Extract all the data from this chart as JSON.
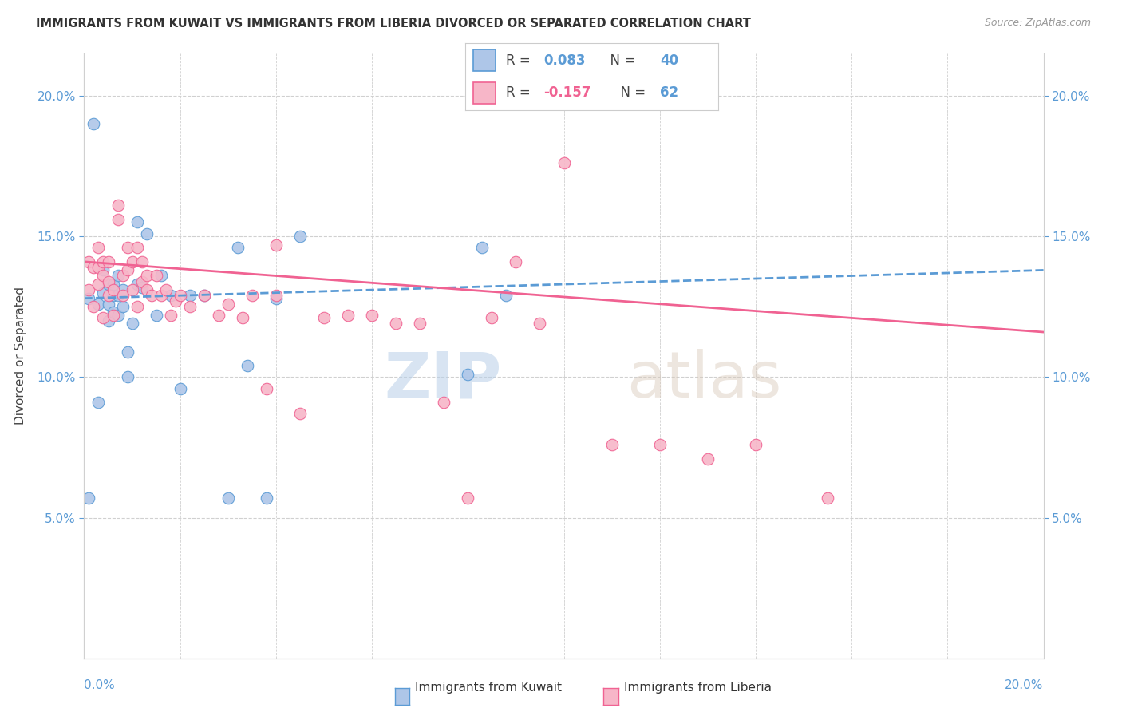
{
  "title": "IMMIGRANTS FROM KUWAIT VS IMMIGRANTS FROM LIBERIA DIVORCED OR SEPARATED CORRELATION CHART",
  "source": "Source: ZipAtlas.com",
  "ylabel": "Divorced or Separated",
  "xlim": [
    0.0,
    0.2
  ],
  "ylim": [
    0.0,
    0.215
  ],
  "yticks": [
    0.05,
    0.1,
    0.15,
    0.2
  ],
  "ytick_labels": [
    "5.0%",
    "10.0%",
    "15.0%",
    "20.0%"
  ],
  "kuwait_color": "#aec6e8",
  "liberia_color": "#f7b6c8",
  "kuwait_edge_color": "#5b9bd5",
  "liberia_edge_color": "#f06292",
  "kuwait_line_color": "#5b9bd5",
  "liberia_line_color": "#f06292",
  "kuwait_R": 0.083,
  "kuwait_N": 40,
  "liberia_R": -0.157,
  "liberia_N": 62,
  "watermark_zip": "ZIP",
  "watermark_atlas": "atlas",
  "background_color": "#ffffff",
  "grid_color": "#d0d0d0",
  "tick_label_color": "#5b9bd5",
  "title_color": "#333333",
  "source_color": "#999999",
  "ylabel_color": "#444444",
  "kuwait_line_start_y": 0.128,
  "kuwait_line_end_y": 0.138,
  "liberia_line_start_y": 0.141,
  "liberia_line_end_y": 0.116,
  "kw_x": [
    0.001,
    0.002,
    0.003,
    0.003,
    0.004,
    0.004,
    0.005,
    0.005,
    0.005,
    0.006,
    0.006,
    0.006,
    0.007,
    0.007,
    0.007,
    0.008,
    0.008,
    0.009,
    0.009,
    0.01,
    0.011,
    0.011,
    0.012,
    0.013,
    0.015,
    0.016,
    0.018,
    0.02,
    0.022,
    0.025,
    0.03,
    0.032,
    0.034,
    0.038,
    0.04,
    0.045,
    0.08,
    0.083,
    0.088,
    0.001
  ],
  "kw_y": [
    0.128,
    0.19,
    0.091,
    0.126,
    0.13,
    0.138,
    0.12,
    0.126,
    0.133,
    0.123,
    0.129,
    0.133,
    0.122,
    0.129,
    0.136,
    0.125,
    0.131,
    0.1,
    0.109,
    0.119,
    0.155,
    0.133,
    0.132,
    0.151,
    0.122,
    0.136,
    0.129,
    0.096,
    0.129,
    0.129,
    0.057,
    0.146,
    0.104,
    0.057,
    0.128,
    0.15,
    0.101,
    0.146,
    0.129,
    0.057
  ],
  "lb_x": [
    0.001,
    0.001,
    0.002,
    0.002,
    0.003,
    0.003,
    0.003,
    0.004,
    0.004,
    0.004,
    0.005,
    0.005,
    0.005,
    0.006,
    0.006,
    0.007,
    0.007,
    0.008,
    0.008,
    0.009,
    0.009,
    0.01,
    0.01,
    0.011,
    0.011,
    0.012,
    0.012,
    0.013,
    0.013,
    0.014,
    0.015,
    0.016,
    0.017,
    0.018,
    0.019,
    0.02,
    0.022,
    0.025,
    0.028,
    0.03,
    0.033,
    0.035,
    0.038,
    0.04,
    0.045,
    0.05,
    0.055,
    0.06,
    0.065,
    0.07,
    0.075,
    0.08,
    0.085,
    0.09,
    0.095,
    0.1,
    0.11,
    0.12,
    0.13,
    0.14,
    0.155,
    0.04
  ],
  "lb_y": [
    0.131,
    0.141,
    0.125,
    0.139,
    0.133,
    0.139,
    0.146,
    0.121,
    0.136,
    0.141,
    0.129,
    0.134,
    0.141,
    0.122,
    0.131,
    0.156,
    0.161,
    0.129,
    0.136,
    0.138,
    0.146,
    0.131,
    0.141,
    0.125,
    0.146,
    0.134,
    0.141,
    0.131,
    0.136,
    0.129,
    0.136,
    0.129,
    0.131,
    0.122,
    0.127,
    0.129,
    0.125,
    0.129,
    0.122,
    0.126,
    0.121,
    0.129,
    0.096,
    0.129,
    0.087,
    0.121,
    0.122,
    0.122,
    0.119,
    0.119,
    0.091,
    0.057,
    0.121,
    0.141,
    0.119,
    0.176,
    0.076,
    0.076,
    0.071,
    0.076,
    0.057,
    0.147
  ]
}
